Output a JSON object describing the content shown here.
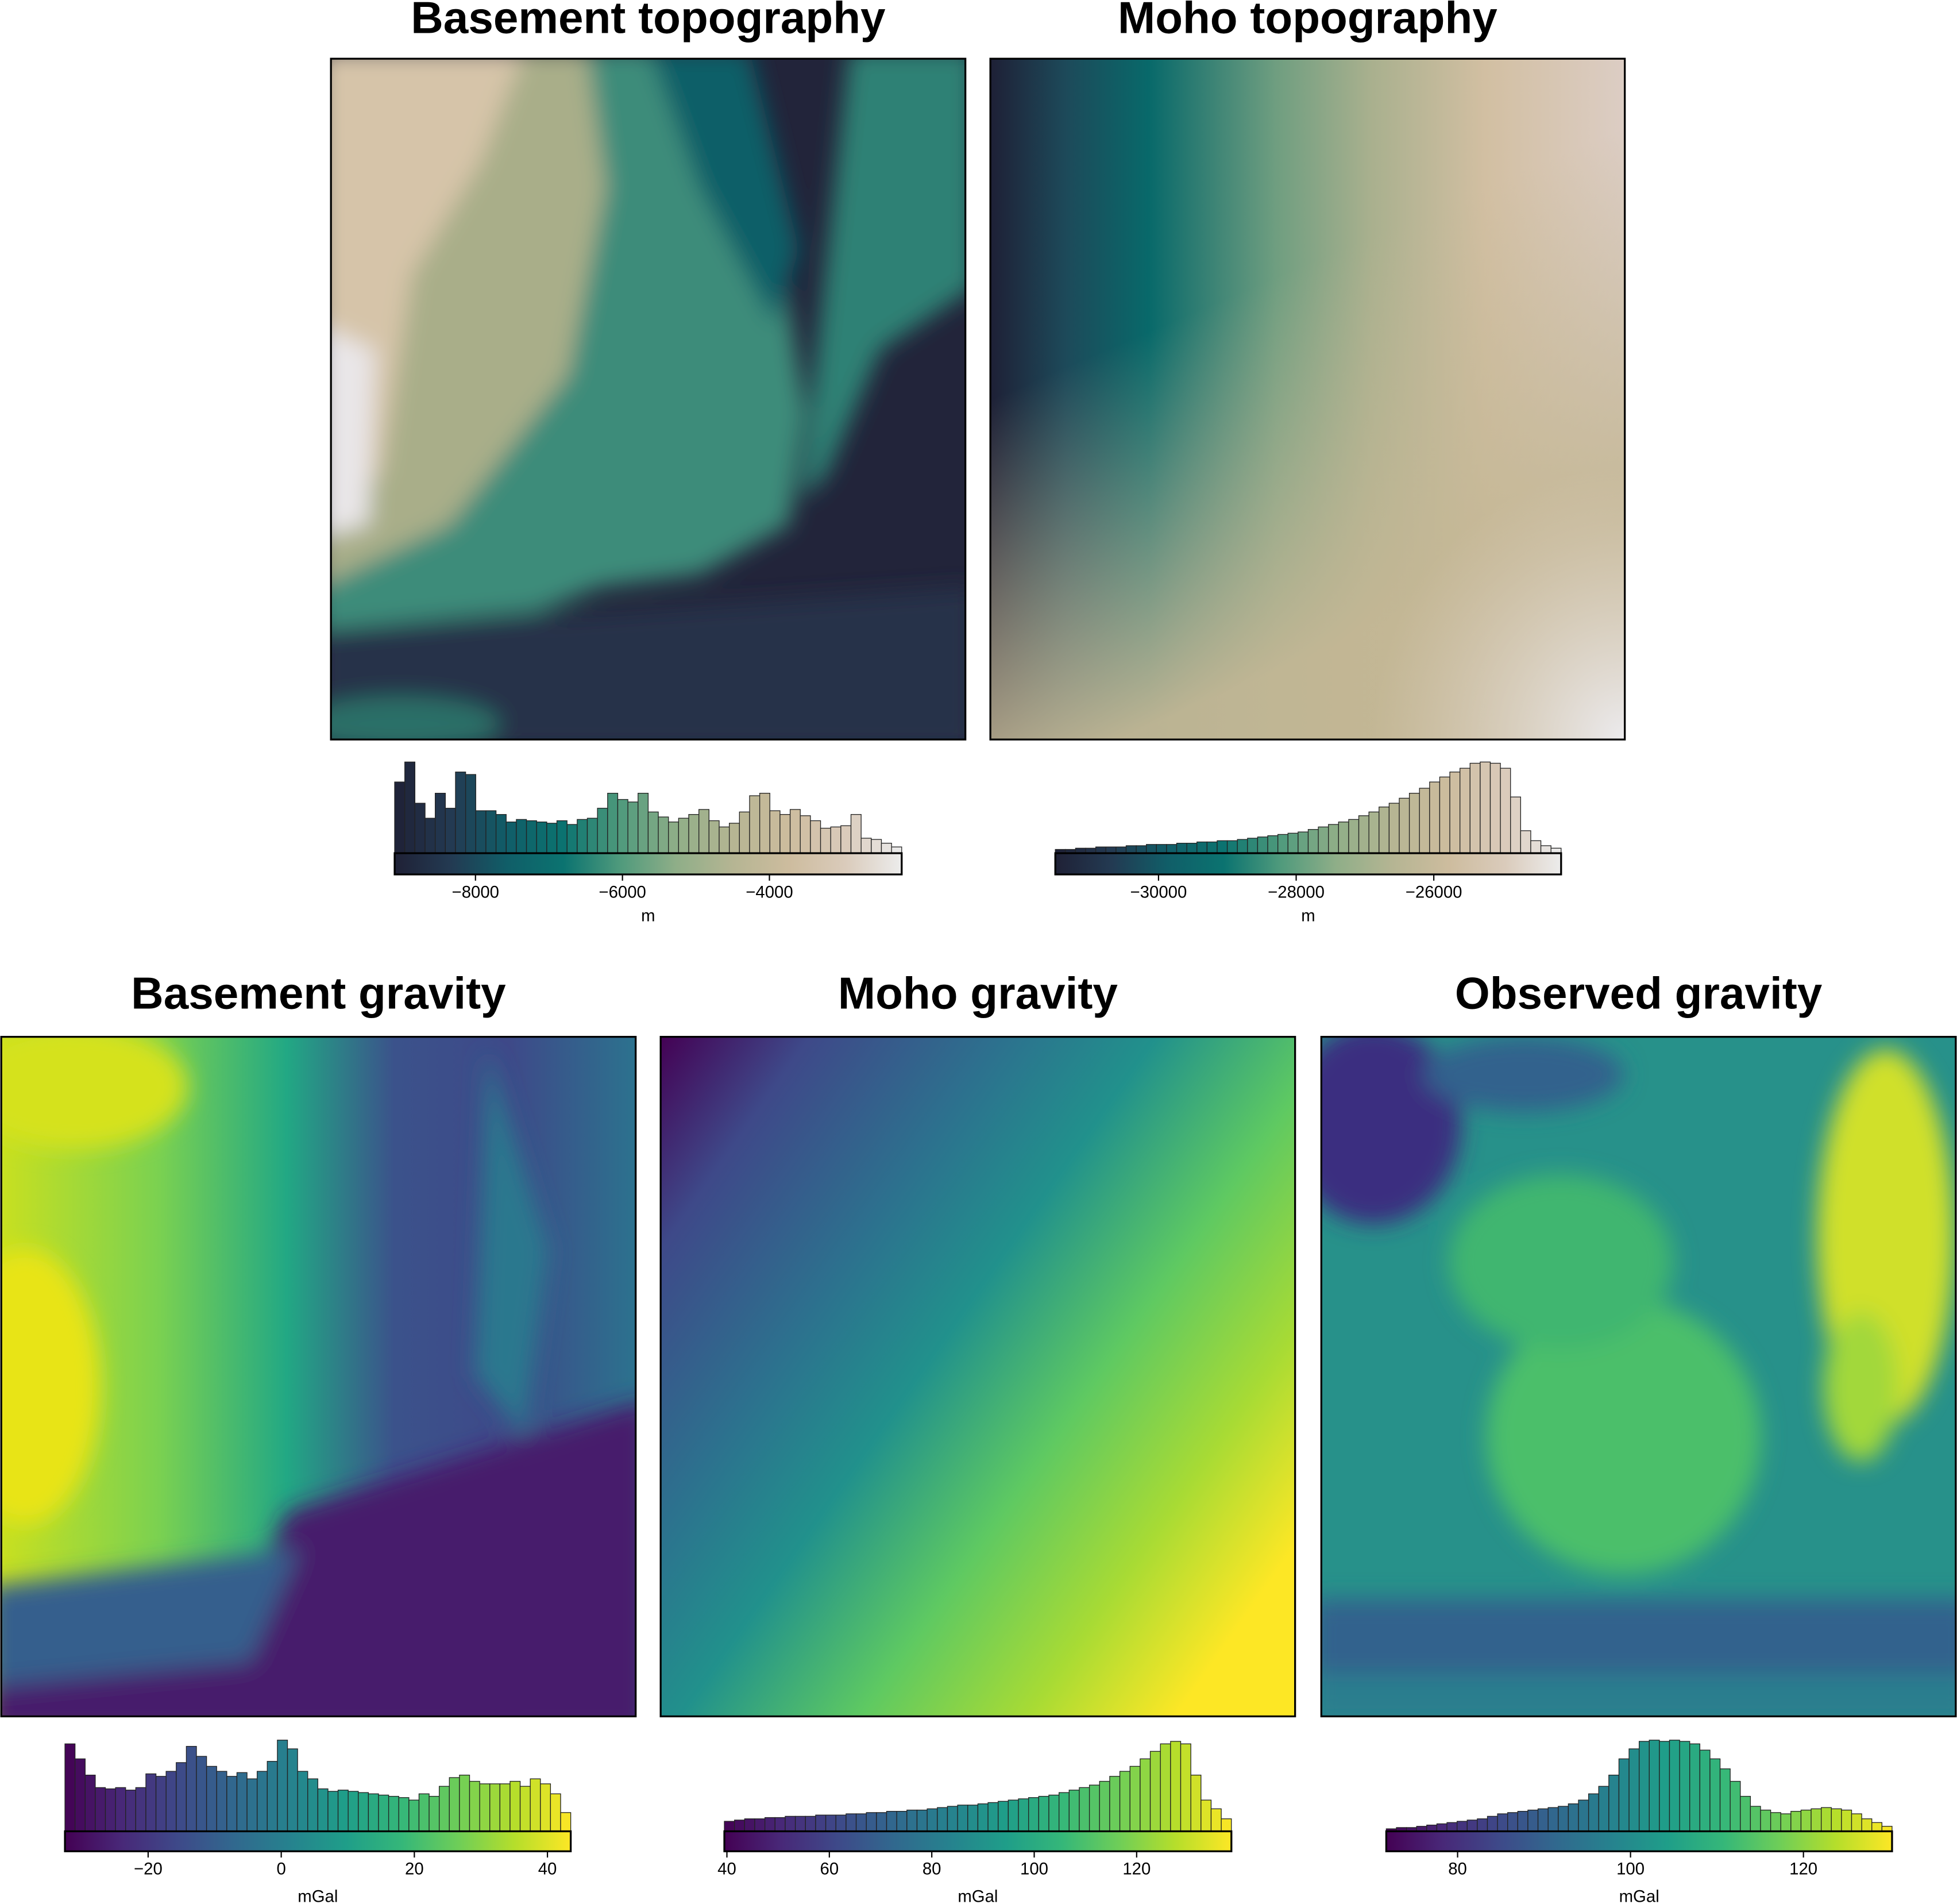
{
  "chart_data": [
    {
      "type": "histogram",
      "title": "Basement topography",
      "xlabel": "m",
      "xlim": [
        -9100,
        -2200
      ],
      "xticks": [
        {
          "value": -8000,
          "label": "−8000"
        },
        {
          "value": -6000,
          "label": "−6000"
        },
        {
          "value": -4000,
          "label": "−4000"
        }
      ],
      "bins": [
        -9100,
        -8962,
        -8824,
        -8686,
        -8548,
        -8410,
        -8272,
        -8134,
        -7996,
        -7858,
        -7720,
        -7582,
        -7444,
        -7306,
        -7168,
        -7030,
        -6892,
        -6754,
        -6616,
        -6478,
        -6340,
        -6202,
        -6064,
        -5926,
        -5788,
        -5650,
        -5512,
        -5374,
        -5236,
        -5098,
        -4960,
        -4822,
        -4684,
        -4546,
        -4408,
        -4270,
        -4132,
        -3994,
        -3856,
        -3718,
        -3580,
        -3442,
        -3304,
        -3166,
        -3028,
        -2890,
        -2752,
        -2614,
        -2476,
        -2338,
        -2200
      ],
      "values": [
        57,
        73,
        40,
        28,
        48,
        36,
        65,
        63,
        34,
        34,
        31,
        25,
        27,
        26,
        25,
        24,
        26,
        23,
        27,
        28,
        36,
        48,
        43,
        41,
        48,
        33,
        29,
        25,
        28,
        31,
        35,
        26,
        21,
        24,
        33,
        46,
        48,
        34,
        31,
        35,
        30,
        26,
        20,
        21,
        22,
        31,
        12,
        11,
        8,
        5
      ],
      "colormap": [
        "#1f2136",
        "#233a52",
        "#105e68",
        "#0b7370",
        "#4f9a7c",
        "#8fae88",
        "#b5b593",
        "#cdbc9e",
        "#dacbbb",
        "#ececec"
      ]
    },
    {
      "type": "histogram",
      "title": "Moho topography",
      "xlabel": "m",
      "xlim": [
        -31500,
        -24150
      ],
      "xticks": [
        {
          "value": -30000,
          "label": "−30000"
        },
        {
          "value": -28000,
          "label": "−28000"
        },
        {
          "value": -26000,
          "label": "−26000"
        }
      ],
      "bins": [
        -31500,
        -31353,
        -31206,
        -31059,
        -30912,
        -30765,
        -30618,
        -30471,
        -30324,
        -30177,
        -30030,
        -29883,
        -29736,
        -29589,
        -29442,
        -29295,
        -29148,
        -29001,
        -28854,
        -28707,
        -28560,
        -28413,
        -28266,
        -28119,
        -27972,
        -27825,
        -27678,
        -27531,
        -27384,
        -27237,
        -27090,
        -26943,
        -26796,
        -26649,
        -26502,
        -26355,
        -26208,
        -26061,
        -25914,
        -25767,
        -25620,
        -25473,
        -25326,
        -25179,
        -25032,
        -24885,
        -24738,
        -24591,
        -24444,
        -24297,
        -24150
      ],
      "values": [
        3,
        3,
        4,
        4,
        5,
        5,
        5,
        6,
        6,
        7,
        7,
        7,
        8,
        8,
        9,
        9,
        10,
        10,
        11,
        12,
        13,
        14,
        15,
        16,
        17,
        19,
        21,
        23,
        25,
        27,
        30,
        33,
        37,
        40,
        44,
        48,
        52,
        57,
        61,
        65,
        68,
        72,
        73,
        72,
        68,
        45,
        18,
        10,
        6,
        4
      ],
      "colormap": [
        "#1f2136",
        "#233a52",
        "#105e68",
        "#0b7370",
        "#4f9a7c",
        "#8fae88",
        "#b5b593",
        "#cdbc9e",
        "#dacbbb",
        "#ececec"
      ]
    },
    {
      "type": "histogram",
      "title": "Basement gravity",
      "xlabel": "mGal",
      "xlim": [
        -32.5,
        43.5
      ],
      "xticks": [
        {
          "value": -20,
          "label": "−20"
        },
        0,
        20,
        40
      ],
      "bins": [
        -32.5,
        -30.98,
        -29.46,
        -27.94,
        -26.42,
        -24.9,
        -23.38,
        -21.86,
        -20.34,
        -18.82,
        -17.3,
        -15.78,
        -14.26,
        -12.74,
        -11.22,
        -9.7,
        -8.18,
        -6.66,
        -5.14,
        -3.62,
        -2.1,
        -0.58,
        0.94,
        2.46,
        3.98,
        5.5,
        7.02,
        8.54,
        10.06,
        11.58,
        13.1,
        14.62,
        16.14,
        17.66,
        19.18,
        20.7,
        22.22,
        23.74,
        25.26,
        26.78,
        28.3,
        29.82,
        31.34,
        32.86,
        34.38,
        35.9,
        37.42,
        38.94,
        40.46,
        41.98,
        43.5
      ],
      "values": [
        70,
        58,
        45,
        35,
        34,
        35,
        33,
        35,
        46,
        44,
        48,
        55,
        68,
        60,
        52,
        48,
        44,
        47,
        42,
        48,
        56,
        73,
        66,
        48,
        42,
        34,
        32,
        33,
        32,
        31,
        30,
        29,
        28,
        27,
        25,
        30,
        28,
        36,
        43,
        45,
        40,
        38,
        38,
        38,
        40,
        36,
        42,
        38,
        30,
        15
      ],
      "colormap": [
        "#440154",
        "#482878",
        "#3e4989",
        "#31688e",
        "#26828e",
        "#1f9e89",
        "#35b779",
        "#6ece58",
        "#b5de2b",
        "#fde725"
      ]
    },
    {
      "type": "histogram",
      "title": "Moho gravity",
      "xlabel": "mGal",
      "xlim": [
        39.5,
        138.5
      ],
      "xticks": [
        40,
        60,
        80,
        100,
        120
      ],
      "bins": [
        39.5,
        41.48,
        43.46,
        45.44,
        47.42,
        49.4,
        51.38,
        53.36,
        55.34,
        57.32,
        59.3,
        61.28,
        63.26,
        65.24,
        67.22,
        69.2,
        71.18,
        73.16,
        75.14,
        77.12,
        79.1,
        81.08,
        83.06,
        85.04,
        87.02,
        89,
        90.98,
        92.96,
        94.94,
        96.92,
        98.9,
        100.88,
        102.86,
        104.84,
        106.82,
        108.8,
        110.78,
        112.76,
        114.74,
        116.72,
        118.7,
        120.68,
        122.66,
        124.64,
        126.62,
        128.6,
        130.58,
        132.56,
        134.54,
        136.52,
        138.5
      ],
      "values": [
        8,
        9,
        10,
        10,
        11,
        11,
        12,
        12,
        12,
        13,
        13,
        13,
        14,
        14,
        15,
        15,
        16,
        16,
        17,
        17,
        18,
        19,
        20,
        21,
        21,
        22,
        23,
        24,
        25,
        26,
        27,
        28,
        29,
        31,
        33,
        35,
        37,
        40,
        44,
        48,
        52,
        58,
        64,
        70,
        72,
        70,
        45,
        25,
        18,
        10
      ],
      "colormap": [
        "#440154",
        "#482878",
        "#3e4989",
        "#31688e",
        "#26828e",
        "#1f9e89",
        "#35b779",
        "#6ece58",
        "#b5de2b",
        "#fde725"
      ]
    },
    {
      "type": "histogram",
      "title": "Observed gravity",
      "xlabel": "mGal",
      "xlim": [
        71.75,
        130.25
      ],
      "xticks": [
        80,
        100,
        120
      ],
      "bins": [
        71.75,
        72.92,
        74.09,
        75.26,
        76.43,
        77.6,
        78.77,
        79.94,
        81.11,
        82.28,
        83.45,
        84.62,
        85.79,
        86.96,
        88.13,
        89.3,
        90.47,
        91.64,
        92.81,
        93.98,
        95.15,
        96.32,
        97.49,
        98.66,
        99.83,
        101,
        102.17,
        103.34,
        104.51,
        105.68,
        106.85,
        108.02,
        109.19,
        110.36,
        111.53,
        112.7,
        113.87,
        115.04,
        116.21,
        117.38,
        118.55,
        119.72,
        120.89,
        122.06,
        123.23,
        124.4,
        125.57,
        126.74,
        127.91,
        129.08,
        130.25
      ],
      "values": [
        2,
        3,
        3,
        4,
        5,
        6,
        7,
        8,
        9,
        10,
        12,
        14,
        15,
        16,
        17,
        18,
        19,
        20,
        22,
        25,
        30,
        36,
        45,
        58,
        66,
        72,
        73,
        72,
        73,
        72,
        70,
        65,
        58,
        50,
        40,
        28,
        20,
        17,
        15,
        14,
        16,
        17,
        18,
        19,
        18,
        17,
        14,
        10,
        7,
        4
      ],
      "colormap": [
        "#440154",
        "#482878",
        "#3e4989",
        "#31688e",
        "#26828e",
        "#1f9e89",
        "#35b779",
        "#6ece58",
        "#b5de2b",
        "#fde725"
      ]
    }
  ]
}
